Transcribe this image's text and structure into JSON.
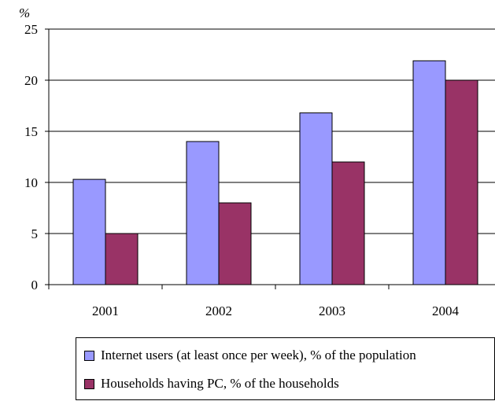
{
  "chart_data": {
    "type": "bar",
    "unit_label": "%",
    "categories": [
      "2001",
      "2002",
      "2003",
      "2004"
    ],
    "series": [
      {
        "name": "Internet users (at least once per week), % of the population",
        "color": "#9999ff",
        "values": [
          10.3,
          14.0,
          16.8,
          21.9
        ]
      },
      {
        "name": "Households having PC, % of the households",
        "color": "#993366",
        "values": [
          5,
          8,
          12,
          20
        ]
      }
    ],
    "ylim": [
      0,
      25
    ],
    "yticks": [
      0,
      5,
      10,
      15,
      20,
      25
    ],
    "grid": true,
    "legend_position": "bottom"
  }
}
